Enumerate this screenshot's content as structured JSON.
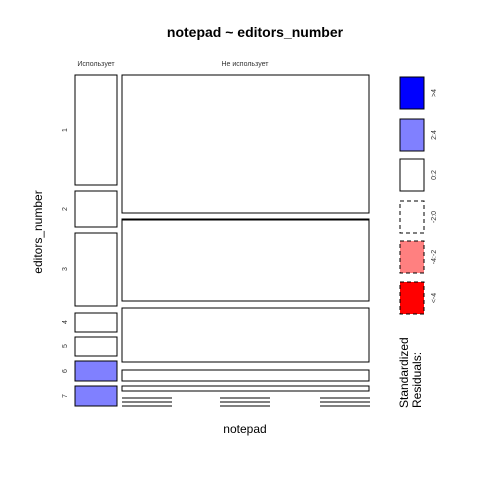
{
  "chart_data": {
    "type": "mosaic",
    "title": "notepad ~ editors_number",
    "xlabel": "notepad",
    "ylabel": "editors_number",
    "columns": [
      "Использует",
      "Не использует"
    ],
    "rows": [
      "1",
      "2",
      "3",
      "4",
      "5",
      "6",
      "7"
    ],
    "cells": [
      {
        "row": "1",
        "col": "Использует",
        "residual_class": "<-2:0"
      },
      {
        "row": "1",
        "col": "Не использует",
        "residual_class": "0:2"
      },
      {
        "row": "2",
        "col": "Использует",
        "residual_class": "<-2:0"
      },
      {
        "row": "2",
        "col": "Не использует",
        "residual_class": "0:2"
      },
      {
        "row": "3",
        "col": "Использует",
        "residual_class": "0:2"
      },
      {
        "row": "3",
        "col": "Не использует",
        "residual_class": "0:2"
      },
      {
        "row": "4",
        "col": "Использует",
        "residual_class": "0:2"
      },
      {
        "row": "4",
        "col": "Не использует",
        "residual_class": "<-2:0"
      },
      {
        "row": "5",
        "col": "Использует",
        "residual_class": "0:2"
      },
      {
        "row": "5",
        "col": "Не использует",
        "residual_class": "<-2:0"
      },
      {
        "row": "6",
        "col": "Использует",
        "residual_class": "2:4"
      },
      {
        "row": "6",
        "col": "Не использует",
        "residual_class": "<-2:0"
      },
      {
        "row": "7",
        "col": "Использует",
        "residual_class": "2:4"
      },
      {
        "row": "7",
        "col": "Не использует",
        "residual_class": "<-2:0"
      }
    ],
    "legend": {
      "title_line1": "Standardized",
      "title_line2": "Residuals:",
      "items": [
        {
          "label": ">4",
          "fill": "#0000ff",
          "dashed": false
        },
        {
          "label": "2:4",
          "fill": "#8080ff",
          "dashed": false
        },
        {
          "label": "0:2",
          "fill": "#ffffff",
          "dashed": false
        },
        {
          "label": "-2:0",
          "fill": "#ffffff",
          "dashed": true
        },
        {
          "label": "-4:-2",
          "fill": "#ff8080",
          "dashed": true
        },
        {
          "label": "<-4",
          "fill": "#ff0000",
          "dashed": true
        }
      ]
    }
  }
}
